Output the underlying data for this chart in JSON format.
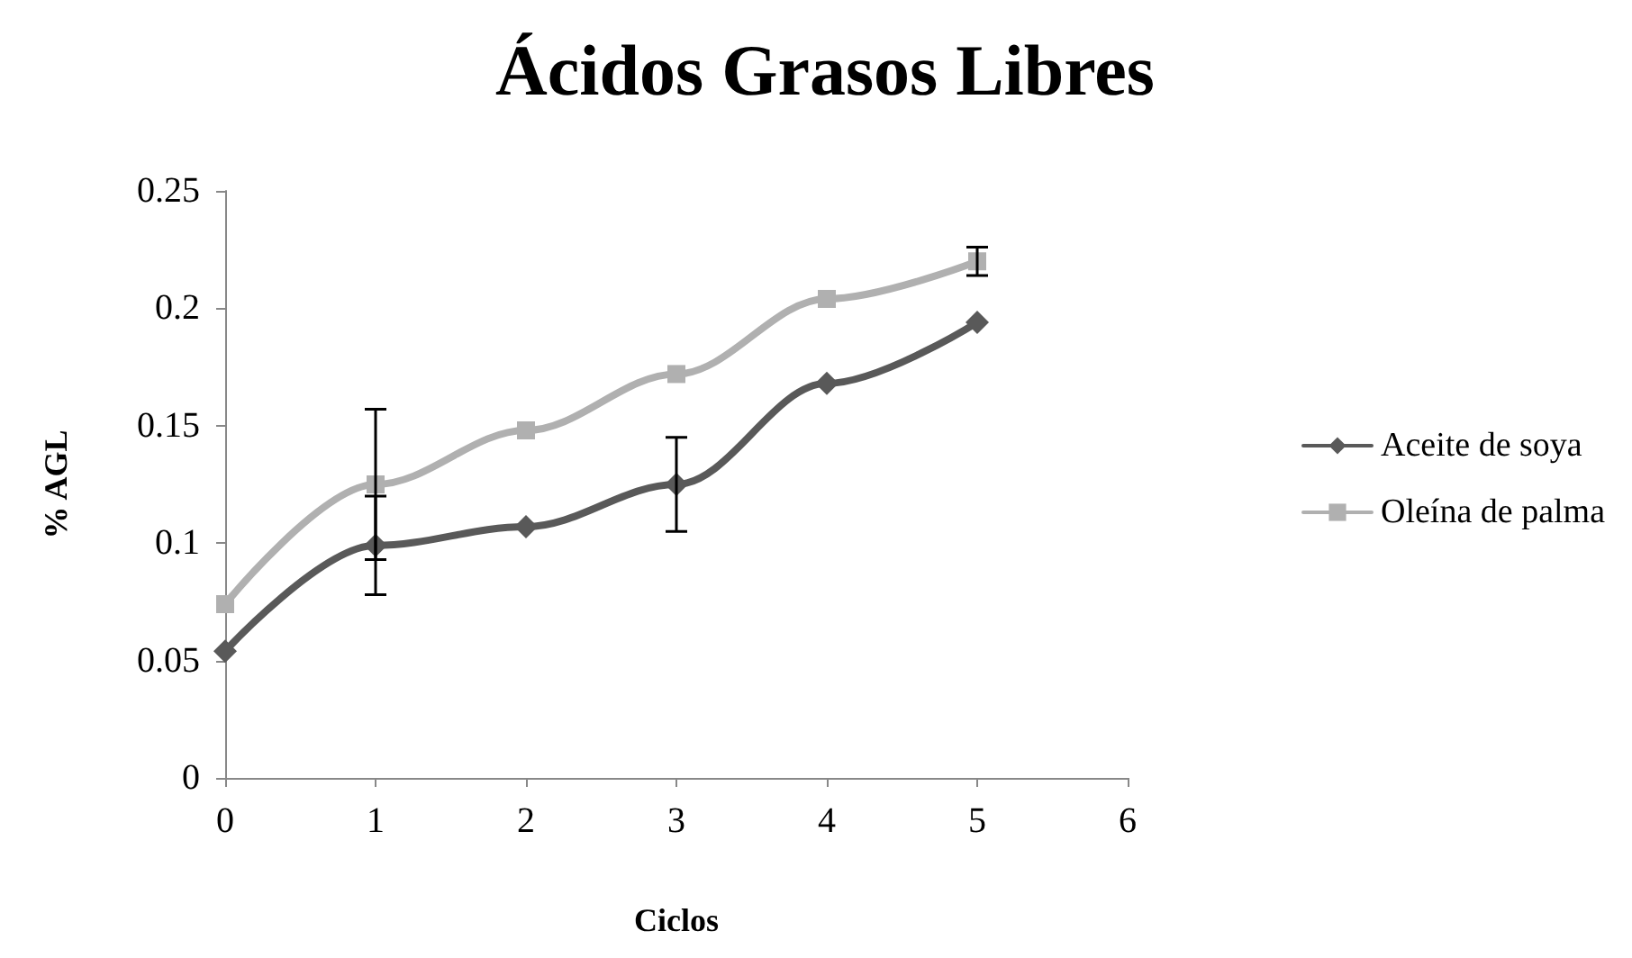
{
  "chart_data": {
    "type": "line",
    "title": "Ácidos Grasos Libres",
    "xlabel": "Ciclos",
    "ylabel": "% AGL",
    "x": [
      0,
      1,
      2,
      3,
      4,
      5
    ],
    "series": [
      {
        "name": "Aceite de soya",
        "color": "#595959",
        "marker": "diamond",
        "values": [
          0.054,
          0.099,
          0.107,
          0.125,
          0.168,
          0.194
        ],
        "errors": [
          null,
          0.021,
          null,
          0.02,
          null,
          null
        ]
      },
      {
        "name": "Oleína de palma",
        "color": "#b0b0b0",
        "marker": "square",
        "values": [
          0.074,
          0.125,
          0.148,
          0.172,
          0.204,
          0.22
        ],
        "errors": [
          null,
          0.032,
          null,
          null,
          null,
          0.006
        ]
      }
    ],
    "xlim": [
      0,
      6
    ],
    "xticks": [
      0,
      1,
      2,
      3,
      4,
      5,
      6
    ],
    "ylim": [
      0,
      0.25
    ],
    "yticks": [
      0,
      0.05,
      0.1,
      0.15,
      0.2,
      0.25
    ],
    "grid": false,
    "legend": "right",
    "line_style": "solid"
  }
}
